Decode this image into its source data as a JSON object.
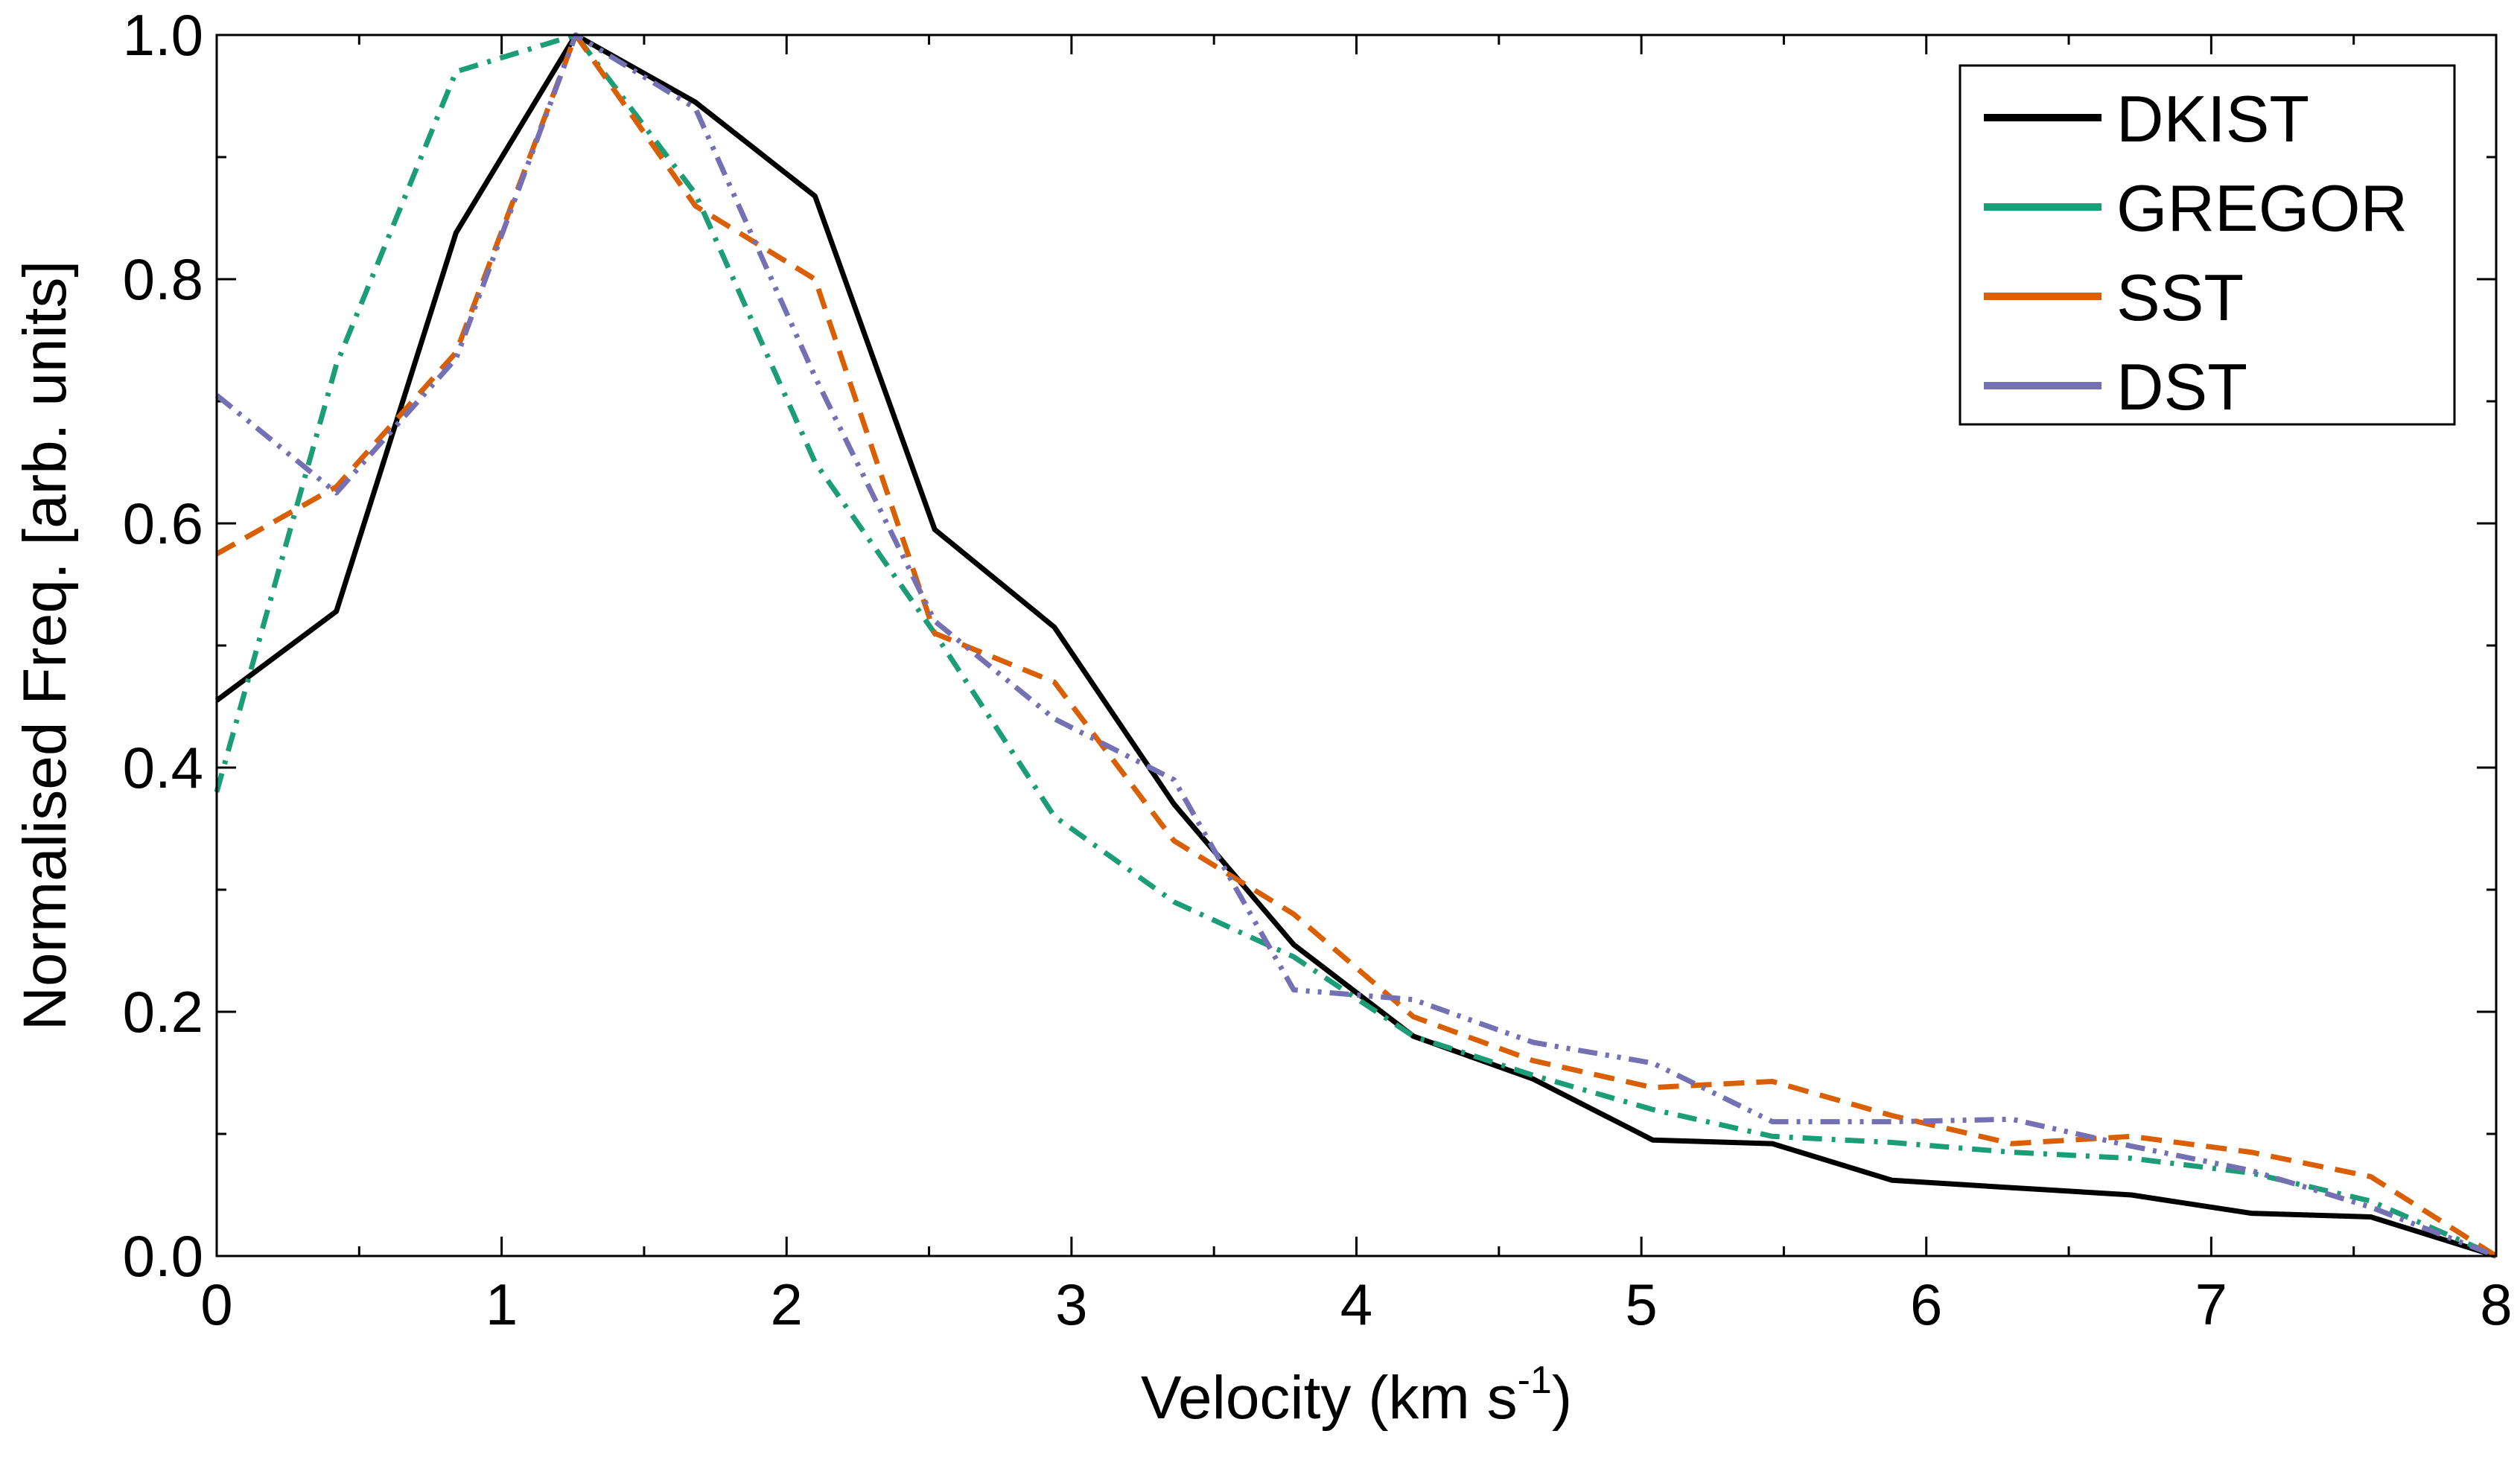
{
  "chart_data": {
    "type": "line",
    "title": "",
    "xlabel": "Velocity (km s",
    "xlabel_sup": "-1",
    "xlabel_end": ")",
    "ylabel": "Normalised Freq. [arb. units]",
    "xlim": [
      0,
      8
    ],
    "ylim": [
      0,
      1
    ],
    "xticks": [
      0,
      1,
      2,
      3,
      4,
      5,
      6,
      7,
      8
    ],
    "xtick_labels": [
      "0",
      "1",
      "2",
      "3",
      "4",
      "5",
      "6",
      "7",
      "8"
    ],
    "yticks": [
      0.0,
      0.2,
      0.4,
      0.6,
      0.8,
      1.0
    ],
    "ytick_labels": [
      "0.0",
      "0.2",
      "0.4",
      "0.6",
      "0.8",
      "1.0"
    ],
    "legend_position": "top-right",
    "series": [
      {
        "name": "DKIST",
        "color": "#000000",
        "style": "solid",
        "x": [
          0,
          0.42,
          0.84,
          1.26,
          1.68,
          2.1,
          2.52,
          2.94,
          3.36,
          3.78,
          4.2,
          4.62,
          5.04,
          5.46,
          5.88,
          6.3,
          6.72,
          7.14,
          7.56,
          8.0
        ],
        "y": [
          0.455,
          0.528,
          0.838,
          1.0,
          0.945,
          0.868,
          0.595,
          0.515,
          0.37,
          0.255,
          0.18,
          0.145,
          0.095,
          0.092,
          0.062,
          0.056,
          0.05,
          0.035,
          0.032,
          0.0
        ]
      },
      {
        "name": "GREGOR",
        "color": "#1b9e77",
        "style": "dashdot",
        "x": [
          0,
          0.42,
          0.84,
          1.26,
          1.68,
          2.1,
          2.52,
          2.94,
          3.36,
          3.78,
          4.2,
          4.62,
          5.04,
          5.46,
          5.88,
          6.3,
          6.72,
          7.14,
          7.56,
          8.0
        ],
        "y": [
          0.38,
          0.73,
          0.97,
          1.0,
          0.87,
          0.65,
          0.51,
          0.36,
          0.29,
          0.245,
          0.18,
          0.148,
          0.12,
          0.098,
          0.093,
          0.085,
          0.08,
          0.068,
          0.045,
          0.0
        ]
      },
      {
        "name": "SST",
        "color": "#d95f02",
        "style": "dashed",
        "x": [
          0,
          0.42,
          0.84,
          1.26,
          1.68,
          2.1,
          2.52,
          2.94,
          3.36,
          3.78,
          4.2,
          4.62,
          5.04,
          5.46,
          5.88,
          6.3,
          6.72,
          7.14,
          7.56,
          8.0
        ],
        "y": [
          0.575,
          0.63,
          0.74,
          1.0,
          0.86,
          0.8,
          0.51,
          0.47,
          0.34,
          0.28,
          0.196,
          0.16,
          0.138,
          0.143,
          0.115,
          0.092,
          0.098,
          0.085,
          0.065,
          0.0
        ]
      },
      {
        "name": "DST",
        "color": "#7570b3",
        "style": "dashdotdot",
        "x": [
          0,
          0.42,
          0.84,
          1.26,
          1.68,
          2.1,
          2.52,
          2.94,
          3.36,
          3.78,
          4.2,
          4.62,
          5.04,
          5.46,
          5.88,
          6.3,
          6.72,
          7.14,
          7.56,
          8.0
        ],
        "y": [
          0.705,
          0.625,
          0.735,
          1.0,
          0.94,
          0.72,
          0.52,
          0.44,
          0.39,
          0.218,
          0.21,
          0.175,
          0.158,
          0.11,
          0.11,
          0.112,
          0.09,
          0.07,
          0.04,
          0.0
        ]
      }
    ]
  }
}
